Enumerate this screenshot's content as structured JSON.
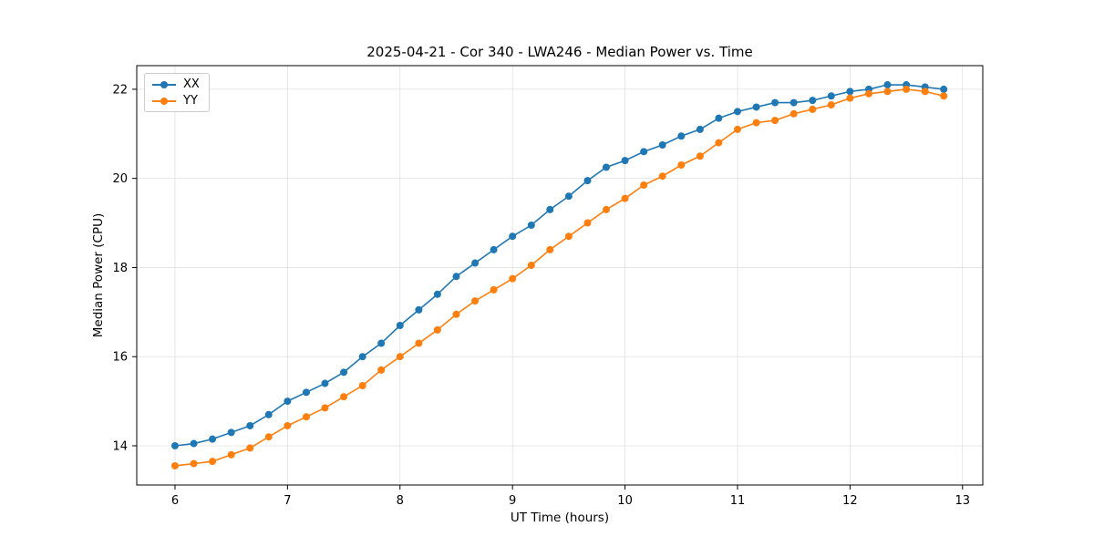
{
  "chart_data": {
    "type": "line",
    "title": "2025-04-21 - Cor 340 - LWA246 - Median Power vs. Time",
    "xlabel": "UT Time (hours)",
    "ylabel": "Median Power (CPU)",
    "xlim": [
      5.66,
      13.18
    ],
    "ylim": [
      13.12,
      22.53
    ],
    "xticks": [
      6,
      7,
      8,
      9,
      10,
      11,
      12,
      13
    ],
    "yticks": [
      14,
      16,
      18,
      20,
      22
    ],
    "grid": true,
    "legend_position": "upper-left",
    "marker": "circle",
    "x": [
      6.0,
      6.167,
      6.333,
      6.5,
      6.667,
      6.833,
      7.0,
      7.167,
      7.333,
      7.5,
      7.667,
      7.833,
      8.0,
      8.167,
      8.333,
      8.5,
      8.667,
      8.833,
      9.0,
      9.167,
      9.333,
      9.5,
      9.667,
      9.833,
      10.0,
      10.167,
      10.333,
      10.5,
      10.667,
      10.833,
      11.0,
      11.167,
      11.333,
      11.5,
      11.667,
      11.833,
      12.0,
      12.167,
      12.333,
      12.5,
      12.667,
      12.833
    ],
    "series": [
      {
        "name": "XX",
        "color": "#1f77b4",
        "values": [
          14.0,
          14.05,
          14.15,
          14.3,
          14.45,
          14.7,
          15.0,
          15.2,
          15.4,
          15.65,
          16.0,
          16.3,
          16.7,
          17.05,
          17.4,
          17.8,
          18.1,
          18.4,
          18.7,
          18.95,
          19.3,
          19.6,
          19.95,
          20.25,
          20.4,
          20.6,
          20.75,
          20.95,
          21.1,
          21.35,
          21.5,
          21.6,
          21.7,
          21.7,
          21.75,
          21.85,
          21.95,
          22.0,
          22.1,
          22.1,
          22.05,
          22.0
        ]
      },
      {
        "name": "YY",
        "color": "#ff7f0e",
        "values": [
          13.55,
          13.6,
          13.65,
          13.8,
          13.95,
          14.2,
          14.45,
          14.65,
          14.85,
          15.1,
          15.35,
          15.7,
          16.0,
          16.3,
          16.6,
          16.95,
          17.25,
          17.5,
          17.75,
          18.05,
          18.4,
          18.7,
          19.0,
          19.3,
          19.55,
          19.85,
          20.05,
          20.3,
          20.5,
          20.8,
          21.1,
          21.25,
          21.3,
          21.45,
          21.55,
          21.65,
          21.8,
          21.9,
          21.95,
          22.0,
          21.95,
          21.85
        ]
      }
    ],
    "style": {
      "grid_color": "#e0e0e0",
      "spine_color": "#000000",
      "marker_radius": 4,
      "line_width": 1.6
    }
  }
}
